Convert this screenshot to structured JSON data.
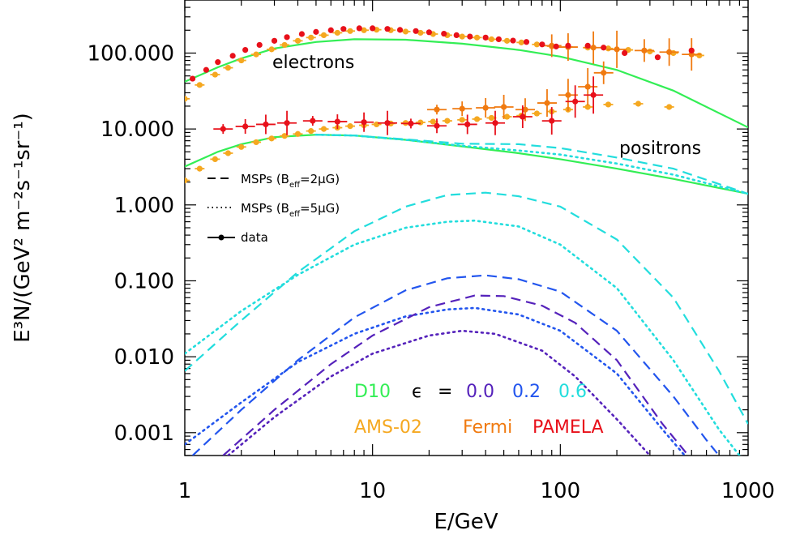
{
  "chart_data": {
    "type": "line",
    "xscale": "log",
    "yscale": "log",
    "xlim": [
      1,
      1000
    ],
    "ylim": [
      0.0005,
      500
    ],
    "xlabel": "E/GeV",
    "ylabel": "E³N/(GeV² m⁻²s⁻¹sr⁻¹)",
    "xticks": [
      "1",
      "10",
      "100",
      "1000"
    ],
    "yticks": [
      "100.000",
      "10.000",
      "1.000",
      "0.100",
      "0.010",
      "0.001"
    ],
    "annotations": {
      "electrons": "electrons",
      "positrons": "positrons"
    },
    "legend": [
      {
        "label": "MSPs (B",
        "sub": "eff",
        "rest": "=2μG)",
        "style": "dashed"
      },
      {
        "label": "MSPs (B",
        "sub": "eff",
        "rest": "=5μG)",
        "style": "dotted"
      },
      {
        "label": "data",
        "style": "marker"
      }
    ],
    "key": {
      "d10": "D10",
      "epsilon": "ϵ",
      "equals": "=",
      "eps_values": [
        "0.0",
        "0.2",
        "0.6"
      ],
      "experiments": [
        "AMS-02",
        "Fermi",
        "PAMELA"
      ]
    },
    "colors": {
      "d10": "#33ee55",
      "eps0": "#5522bb",
      "eps02": "#2255ee",
      "eps06": "#22dddd",
      "ams": "#f5a820",
      "fermi": "#f07a10",
      "pamela": "#e8101a"
    },
    "series": [
      {
        "name": "D10 electrons",
        "color": "d10",
        "style": "solid",
        "x": [
          1,
          1.5,
          2,
          3,
          5,
          8,
          15,
          30,
          60,
          100,
          200,
          400,
          1000
        ],
        "y": [
          42,
          65,
          85,
          115,
          140,
          152,
          150,
          133,
          110,
          90,
          60,
          32,
          10.5
        ]
      },
      {
        "name": "D10 positrons",
        "color": "d10",
        "style": "solid",
        "x": [
          1,
          1.5,
          2,
          3,
          5,
          8,
          15,
          30,
          60,
          100,
          200,
          400,
          1000
        ],
        "y": [
          3.2,
          5.0,
          6.3,
          7.8,
          8.4,
          8.2,
          7.2,
          5.9,
          4.8,
          4.0,
          3.0,
          2.2,
          1.4
        ]
      },
      {
        "name": "D10 + MSP eps 0.6 dashed",
        "color": "eps06",
        "style": "dashed",
        "x": [
          5,
          8,
          15,
          30,
          60,
          100,
          200,
          400,
          1000
        ],
        "y": [
          8.4,
          8.2,
          7.3,
          6.4,
          6.3,
          5.6,
          4.2,
          3.0,
          1.4
        ]
      },
      {
        "name": "D10 + MSP eps 0.6 dotted",
        "color": "eps06",
        "style": "dotted",
        "x": [
          5,
          8,
          15,
          30,
          60,
          100,
          200,
          400,
          1000
        ],
        "y": [
          8.4,
          8.2,
          7.2,
          6.0,
          5.2,
          4.6,
          3.5,
          2.5,
          1.4
        ]
      },
      {
        "name": "MSP eps 0.6 B=2uG",
        "color": "eps06",
        "style": "dashed",
        "x": [
          1,
          2,
          4,
          8,
          15,
          25,
          40,
          60,
          100,
          200,
          400,
          700,
          1000
        ],
        "y": [
          0.0065,
          0.03,
          0.13,
          0.45,
          0.95,
          1.35,
          1.45,
          1.3,
          0.95,
          0.35,
          0.06,
          0.0065,
          0.0013
        ]
      },
      {
        "name": "MSP eps 0.6 B=5uG",
        "color": "eps06",
        "style": "dotted",
        "x": [
          1,
          2,
          4,
          8,
          15,
          25,
          35,
          60,
          100,
          200,
          400,
          700,
          900
        ],
        "y": [
          0.011,
          0.04,
          0.12,
          0.3,
          0.5,
          0.6,
          0.62,
          0.52,
          0.3,
          0.08,
          0.009,
          0.0011,
          0.0005
        ]
      },
      {
        "name": "MSP eps 0.2 B=2uG",
        "color": "eps02",
        "style": "dashed",
        "x": [
          1.1,
          2,
          4,
          8,
          15,
          25,
          40,
          60,
          100,
          200,
          400,
          600,
          700
        ],
        "y": [
          0.0005,
          0.002,
          0.009,
          0.033,
          0.075,
          0.108,
          0.118,
          0.105,
          0.072,
          0.022,
          0.003,
          0.0008,
          0.0005
        ]
      },
      {
        "name": "MSP eps 0.2 B=5uG",
        "color": "eps02",
        "style": "dotted",
        "x": [
          1,
          2,
          4,
          8,
          15,
          25,
          35,
          60,
          100,
          200,
          350,
          460
        ],
        "y": [
          0.0007,
          0.0025,
          0.0085,
          0.02,
          0.034,
          0.042,
          0.044,
          0.036,
          0.022,
          0.006,
          0.0011,
          0.0005
        ]
      },
      {
        "name": "MSP eps 0.0 B=2uG",
        "color": "eps0",
        "style": "dashed",
        "x": [
          1.6,
          3,
          6,
          10,
          20,
          35,
          50,
          80,
          120,
          200,
          350,
          480
        ],
        "y": [
          0.0005,
          0.002,
          0.008,
          0.019,
          0.045,
          0.064,
          0.063,
          0.047,
          0.028,
          0.009,
          0.0013,
          0.0005
        ]
      },
      {
        "name": "MSP eps 0.0 B=5uG",
        "color": "eps0",
        "style": "dotted",
        "x": [
          1.7,
          3,
          6,
          10,
          20,
          30,
          45,
          80,
          120,
          200,
          300
        ],
        "y": [
          0.0005,
          0.0016,
          0.0055,
          0.011,
          0.019,
          0.022,
          0.02,
          0.012,
          0.0055,
          0.0015,
          0.0005
        ]
      }
    ],
    "data_points": [
      {
        "name": "AMS-02 electrons",
        "color": "ams",
        "marker": "dot-hbar",
        "x": [
          1.0,
          1.2,
          1.45,
          1.7,
          2.0,
          2.4,
          2.9,
          3.4,
          4.0,
          4.7,
          5.5,
          6.5,
          7.6,
          9,
          10.5,
          12.5,
          15,
          18,
          21,
          25,
          30,
          36,
          43,
          52,
          62,
          75,
          90,
          110,
          140,
          180,
          230,
          300,
          400,
          550
        ],
        "y": [
          25,
          38,
          52,
          64,
          80,
          96,
          112,
          128,
          145,
          160,
          172,
          185,
          195,
          200,
          203,
          200,
          192,
          185,
          178,
          172,
          165,
          160,
          152,
          145,
          138,
          130,
          123,
          120,
          118,
          115,
          110,
          105,
          100,
          93
        ]
      },
      {
        "name": "Fermi electrons",
        "color": "fermi",
        "marker": "dot-cross",
        "x": [
          90,
          110,
          150,
          200,
          280,
          380,
          500
        ],
        "y": [
          125,
          120,
          118,
          112,
          108,
          103,
          96
        ]
      },
      {
        "name": "PAMELA electrons",
        "color": "pamela",
        "marker": "dot",
        "x": [
          1.1,
          1.3,
          1.5,
          1.8,
          2.1,
          2.5,
          3.0,
          3.5,
          4.2,
          5.0,
          6.0,
          7.0,
          8.5,
          10,
          12,
          14,
          17,
          20,
          24,
          28,
          33,
          40,
          47,
          56,
          66,
          80,
          95,
          110,
          140,
          170,
          220,
          330,
          500
        ],
        "y": [
          46,
          60,
          76,
          92,
          110,
          128,
          145,
          162,
          178,
          190,
          200,
          208,
          212,
          212,
          208,
          202,
          195,
          188,
          180,
          172,
          165,
          160,
          152,
          146,
          140,
          130,
          122,
          125,
          125,
          118,
          100,
          88,
          108
        ]
      },
      {
        "name": "AMS-02 positrons",
        "color": "ams",
        "marker": "dot-hbar",
        "x": [
          1.0,
          1.2,
          1.45,
          1.7,
          2.0,
          2.4,
          2.9,
          3.4,
          4.0,
          4.7,
          5.5,
          6.5,
          7.6,
          9,
          10.5,
          12.5,
          15,
          18,
          21,
          25,
          30,
          36,
          43,
          52,
          62,
          75,
          90,
          110,
          140,
          180,
          260,
          380
        ],
        "y": [
          2.1,
          3.0,
          4.0,
          4.8,
          5.8,
          6.7,
          7.5,
          8.1,
          8.6,
          9.4,
          10.0,
          10.4,
          10.9,
          11.2,
          11.5,
          11.8,
          12.0,
          12.2,
          12.5,
          12.8,
          13.2,
          13.5,
          14.0,
          14.5,
          15.0,
          16.0,
          17.0,
          18.0,
          19.5,
          21.0,
          21.5,
          19.5
        ]
      },
      {
        "name": "Fermi positrons",
        "color": "fermi",
        "marker": "dot-cross",
        "x": [
          22,
          30,
          40,
          50,
          65,
          85,
          110,
          140,
          170
        ],
        "y": [
          18,
          18.5,
          19,
          19.5,
          18,
          22,
          28,
          36,
          55
        ]
      },
      {
        "name": "PAMELA positrons",
        "color": "pamela",
        "marker": "dot-cross",
        "x": [
          1.6,
          2.1,
          2.7,
          3.5,
          4.8,
          6.5,
          9,
          12,
          16,
          22,
          32,
          45,
          63,
          90,
          120,
          150
        ],
        "y": [
          10.0,
          10.8,
          11.5,
          12.0,
          12.8,
          12.5,
          12.3,
          12.0,
          11.8,
          11.0,
          11.5,
          12.0,
          14.5,
          12.8,
          23.0,
          28.0
        ]
      }
    ]
  }
}
